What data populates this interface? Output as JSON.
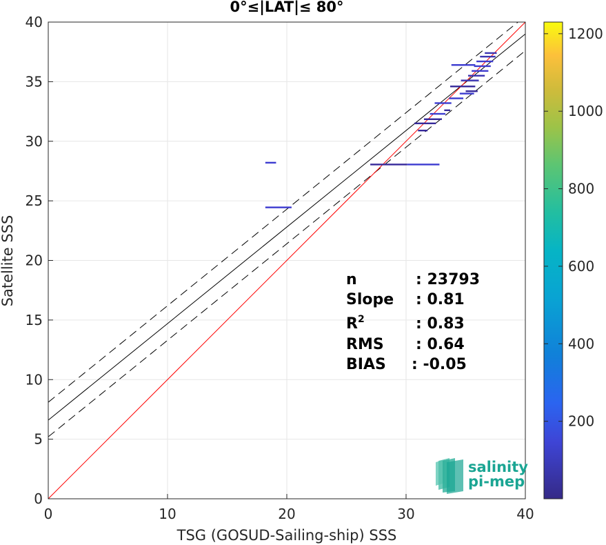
{
  "chart_data": {
    "type": "scatter",
    "title": "0°≤|LAT|≤ 80°",
    "xlabel": "TSG (GOSUD-Sailing-ship) SSS",
    "ylabel": "Satellite SSS",
    "xlim": [
      0,
      40
    ],
    "ylim": [
      0,
      40
    ],
    "xticks": [
      0,
      10,
      20,
      30,
      40
    ],
    "yticks": [
      0,
      5,
      10,
      15,
      20,
      25,
      30,
      35,
      40
    ],
    "grid": true,
    "colorbar": {
      "range": [
        0,
        1230
      ],
      "ticks": [
        200,
        400,
        600,
        800,
        1000,
        1200
      ],
      "colormap": "parula"
    },
    "lines": {
      "identity": {
        "slope": 1,
        "intercept": 0,
        "color": "#ff0000"
      },
      "fit": {
        "slope": 0.81,
        "intercept": 6.6,
        "color": "#000000"
      },
      "fit_upper": {
        "slope": 0.81,
        "intercept": 8.1,
        "color": "#000000",
        "style": "dashed"
      },
      "fit_lower": {
        "slope": 0.81,
        "intercept": 5.2,
        "color": "#000000",
        "style": "dashed"
      }
    },
    "points": [
      {
        "x0": 18.2,
        "x1": 19.1,
        "y": 28.2,
        "count": 20
      },
      {
        "x0": 18.2,
        "x1": 20.4,
        "y": 24.45,
        "count": 5
      },
      {
        "x0": 27.0,
        "x1": 30.1,
        "y": 28.05,
        "count": 40
      },
      {
        "x0": 30.1,
        "x1": 32.8,
        "y": 28.05,
        "count": 8
      },
      {
        "x0": 31.0,
        "x1": 31.8,
        "y": 30.9,
        "count": 30
      },
      {
        "x0": 30.7,
        "x1": 32.5,
        "y": 31.5,
        "count": 30
      },
      {
        "x0": 31.5,
        "x1": 33.0,
        "y": 31.85,
        "count": 60
      },
      {
        "x0": 32.0,
        "x1": 33.3,
        "y": 32.3,
        "count": 20
      },
      {
        "x0": 33.2,
        "x1": 33.7,
        "y": 32.6,
        "count": 25
      },
      {
        "x0": 32.4,
        "x1": 33.8,
        "y": 33.2,
        "count": 15
      },
      {
        "x0": 33.6,
        "x1": 34.8,
        "y": 33.6,
        "count": 20
      },
      {
        "x0": 34.5,
        "x1": 35.7,
        "y": 34.0,
        "count": 15
      },
      {
        "x0": 35.0,
        "x1": 36.0,
        "y": 34.2,
        "count": 25
      },
      {
        "x0": 33.7,
        "x1": 35.8,
        "y": 34.6,
        "count": 60
      },
      {
        "x0": 34.6,
        "x1": 36.1,
        "y": 35.1,
        "count": 80
      },
      {
        "x0": 35.2,
        "x1": 36.6,
        "y": 35.5,
        "count": 150
      },
      {
        "x0": 35.5,
        "x1": 36.9,
        "y": 35.9,
        "count": 200
      },
      {
        "x0": 35.7,
        "x1": 37.1,
        "y": 36.3,
        "count": 220
      },
      {
        "x0": 35.9,
        "x1": 37.3,
        "y": 36.7,
        "count": 180
      },
      {
        "x0": 36.2,
        "x1": 37.5,
        "y": 37.1,
        "count": 140
      },
      {
        "x0": 36.6,
        "x1": 37.6,
        "y": 37.4,
        "count": 100
      },
      {
        "x0": 34.5,
        "x1": 35.8,
        "y": 36.4,
        "count": 10
      },
      {
        "x0": 33.8,
        "x1": 34.8,
        "y": 36.4,
        "count": 5
      }
    ]
  },
  "stats": {
    "n_label": "n",
    "n_value": ": 23793",
    "slope_label": "Slope",
    "slope_value": ": 0.81",
    "r2_label": "R",
    "r2_sup": "2",
    "r2_value": ": 0.83",
    "rms_label": "RMS",
    "rms_value": ": 0.64",
    "bias_label": "BIAS",
    "bias_value": ": -0.05"
  },
  "logo": {
    "line1": "salinity",
    "line2": "pi-mep"
  }
}
